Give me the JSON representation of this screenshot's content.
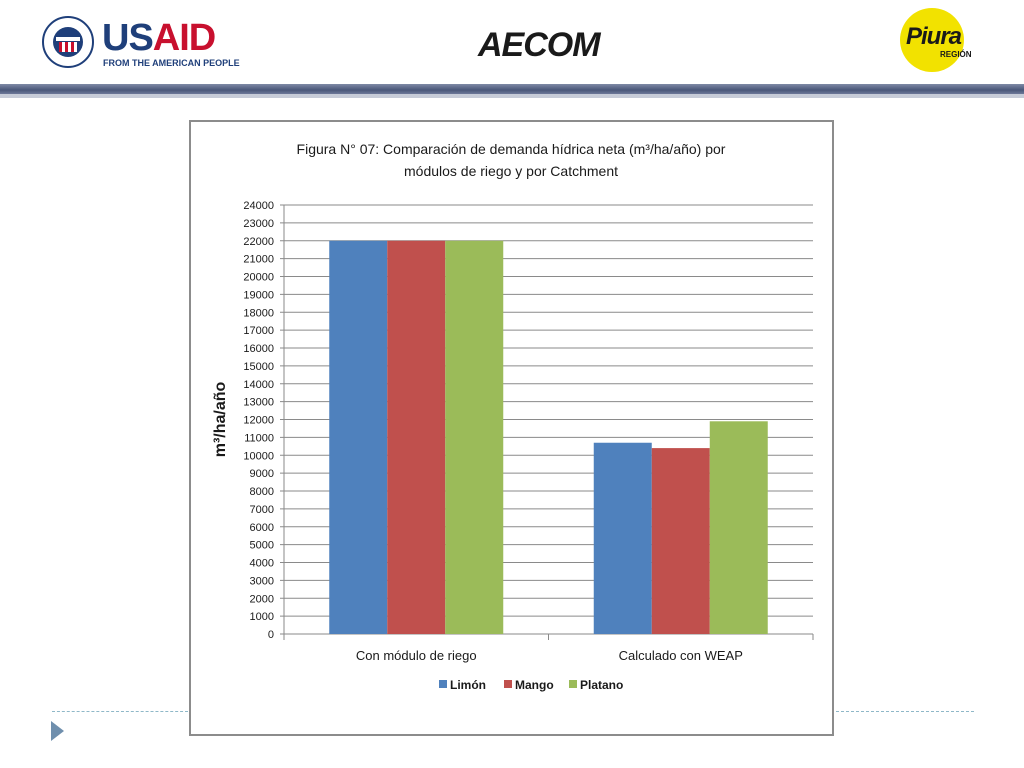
{
  "header": {
    "usaid": {
      "word_us": "US",
      "word_aid": "AID",
      "tagline": "FROM THE AMERICAN PEOPLE"
    },
    "aecom": {
      "text": "AECOM"
    },
    "piura": {
      "word": "Piura",
      "sub": "REGIÓN"
    }
  },
  "colors": {
    "limon": "#4f81bd",
    "mango": "#c0504d",
    "platano": "#9bbb59",
    "header_bar": "#4a5779",
    "accent": "#6f8fad"
  },
  "chart_data": {
    "type": "bar",
    "title_lines": [
      "Figura N° 07: Comparación de demanda hídrica  neta (m³/ha/año) por",
      "módulos de riego y por Catchment"
    ],
    "ylabel": "m³/ha/año",
    "xlabel": "",
    "categories": [
      "Con módulo de riego",
      "Calculado con WEAP"
    ],
    "series": [
      {
        "name": "Limón",
        "values": [
          22000,
          10700
        ]
      },
      {
        "name": "Mango",
        "values": [
          22000,
          10400
        ]
      },
      {
        "name": "Platano",
        "values": [
          22000,
          11900
        ]
      }
    ],
    "ylim": [
      0,
      24000
    ],
    "ytick_step": 1000,
    "grid": true,
    "legend_position": "bottom"
  }
}
